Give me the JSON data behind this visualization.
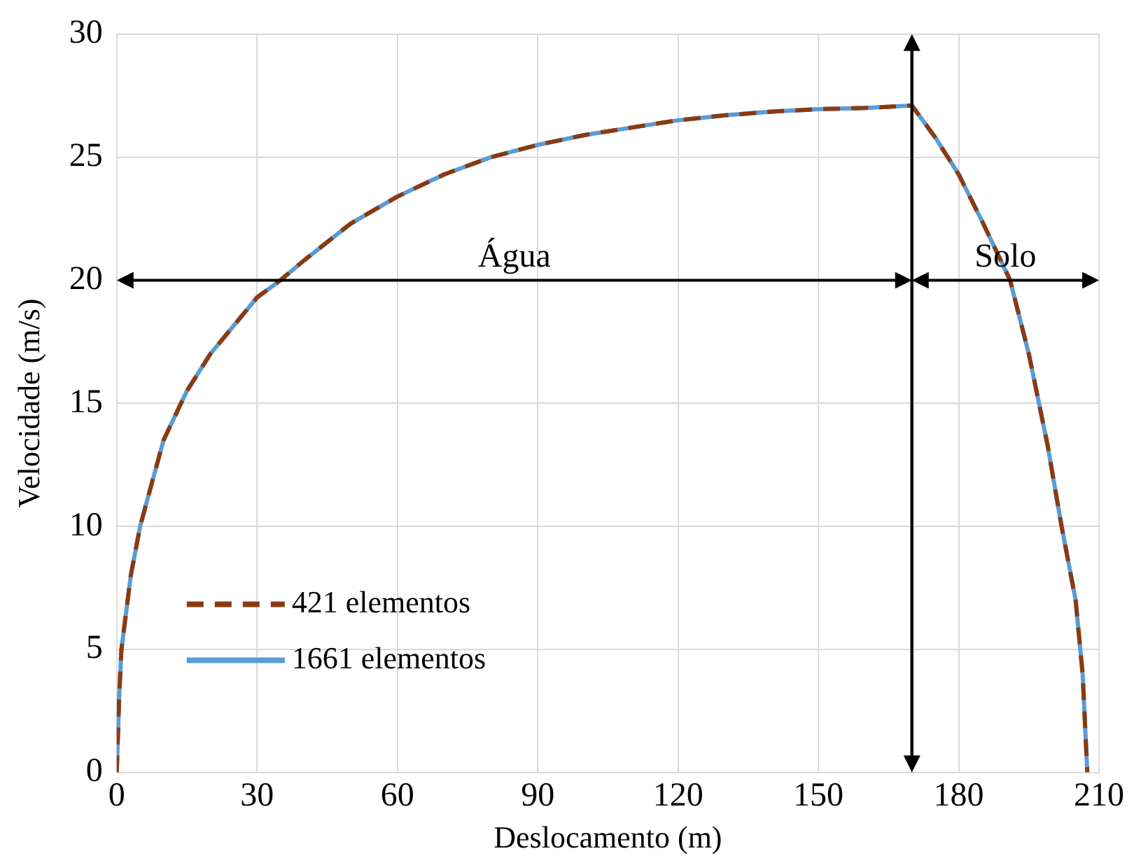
{
  "chart_data": {
    "type": "line",
    "xlabel": "Deslocamento (m)",
    "ylabel": "Velocidade (m/s)",
    "x": [
      0,
      0.5,
      1,
      3,
      5,
      10,
      15,
      20,
      30,
      35,
      40,
      50,
      60,
      70,
      80,
      90,
      100,
      110,
      120,
      130,
      140,
      150,
      160,
      170,
      175,
      180,
      185,
      191,
      195,
      199,
      202,
      205,
      206.5,
      207.5
    ],
    "series": [
      {
        "name": "421 elementos",
        "color": "#8b3a0f",
        "line_style": "dashed",
        "values": [
          0,
          3,
          5,
          8,
          10,
          13.5,
          15.5,
          17,
          19.3,
          20,
          20.8,
          22.3,
          23.4,
          24.3,
          25,
          25.5,
          25.9,
          26.2,
          26.5,
          26.7,
          26.85,
          26.95,
          27,
          27.1,
          25.8,
          24.3,
          22.4,
          20,
          17,
          13.3,
          10,
          7,
          4,
          0
        ]
      },
      {
        "name": "1661 elementos",
        "color": "#5b9bd5",
        "line_style": "solid",
        "values": [
          0,
          3,
          5,
          8,
          10,
          13.5,
          15.5,
          17,
          19.3,
          20,
          20.8,
          22.3,
          23.4,
          24.3,
          25,
          25.5,
          25.9,
          26.2,
          26.5,
          26.7,
          26.85,
          26.95,
          27,
          27.1,
          25.8,
          24.3,
          22.4,
          20,
          17,
          13.3,
          10,
          7,
          4,
          0
        ]
      }
    ],
    "xlim": [
      0,
      210
    ],
    "xticks": [
      0,
      30,
      60,
      90,
      120,
      150,
      180,
      210
    ],
    "ylim": [
      0,
      30
    ],
    "yticks": [
      0,
      5,
      10,
      15,
      20,
      25,
      30
    ],
    "grid": true,
    "legend": "bottom left",
    "marker": "none",
    "ref_lines": [
      {
        "axis": "x",
        "value": 170,
        "color": "#000000"
      }
    ],
    "annotations": [
      "Água",
      "Solo"
    ]
  }
}
